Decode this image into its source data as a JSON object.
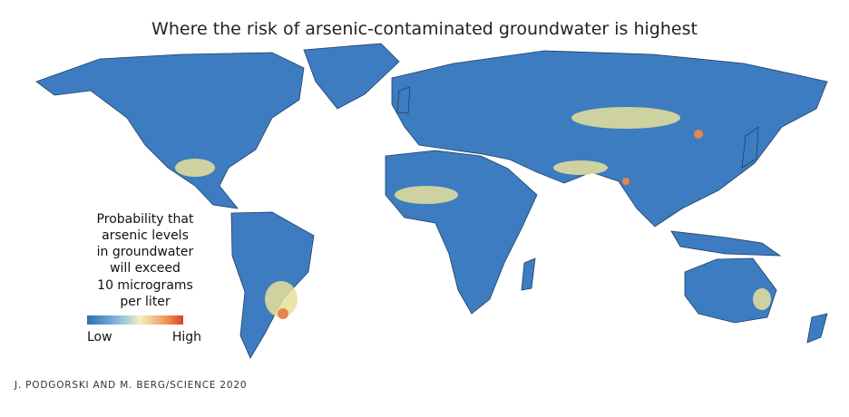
{
  "title": "Where the risk of arsenic-contaminated groundwater is highest",
  "legend": {
    "title_lines": [
      "Probability that",
      "arsenic levels",
      "in groundwater",
      "will exceed",
      "10 micrograms",
      "per liter"
    ],
    "low": "Low",
    "high": "High"
  },
  "credit": "J. PODGORSKI AND M. BERG/SCIENCE 2020"
}
